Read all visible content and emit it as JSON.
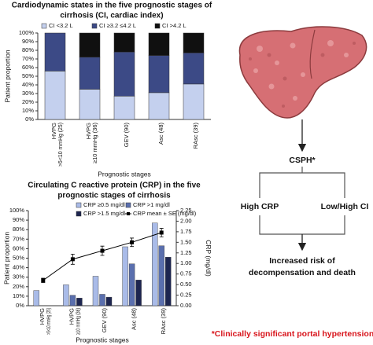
{
  "chart_data": [
    {
      "type": "stacked_bar",
      "title": [
        "Cardiodynamic states in the five prognostic stages of",
        "cirrhosis (CI, cardiac index)"
      ],
      "ylabel": "Patient proportion",
      "xlabel": "Prognostic stages",
      "categories": [
        [
          "HVPG",
          ">5<10 mmHg (25)"
        ],
        [
          "HVPG",
          "≥10 mmHg (36)"
        ],
        [
          "GEV (90)"
        ],
        [
          "Asc (48)"
        ],
        [
          "RAsc (39)"
        ]
      ],
      "series": [
        {
          "name": "CI <3.2 L",
          "color": "#c4d0ee",
          "values": [
            56,
            35,
            27,
            31,
            41
          ]
        },
        {
          "name": "CI ≥3.2 ≤4.2 L",
          "color": "#3c4a86",
          "values": [
            44,
            37,
            51,
            43,
            36
          ]
        },
        {
          "name": "CI >4.2 L",
          "color": "#101010",
          "values": [
            0,
            28,
            22,
            26,
            23
          ]
        }
      ],
      "ylim": [
        0,
        100
      ],
      "yticks": [
        {
          "value": 0,
          "label": "0%"
        },
        {
          "value": 10,
          "label": "10%"
        },
        {
          "value": 20,
          "label": "20%"
        },
        {
          "value": 30,
          "label": "30%"
        },
        {
          "value": 40,
          "label": "40%"
        },
        {
          "value": 50,
          "label": "50%"
        },
        {
          "value": 60,
          "label": "60%"
        },
        {
          "value": 70,
          "label": "70%"
        },
        {
          "value": 80,
          "label": "80%"
        },
        {
          "value": 90,
          "label": "90%"
        },
        {
          "value": 100,
          "label": "100%"
        }
      ]
    },
    {
      "type": "bar_line",
      "title": [
        "Circulating C reactive protein (CRP) in the five",
        "prognostic stages of cirrhosis"
      ],
      "ylabel": "Patient proportion",
      "y2label": "CRP (mg/dl)",
      "xlabel": "Prognostic stages",
      "categories": [
        [
          "HVPG",
          ">5<10 mmHg (25)"
        ],
        [
          "HVPG",
          "≥10 mmHg (36)"
        ],
        [
          "GEV (90)"
        ],
        [
          "Asc (48)"
        ],
        [
          "RAsc (39)"
        ]
      ],
      "series": [
        {
          "name": "CRP ≥0.5 mg/dl",
          "color": "#a9bbe8",
          "values": [
            16,
            22,
            31,
            62,
            87
          ]
        },
        {
          "name": "CRP >1 mg/dl",
          "color": "#5a6fae",
          "values": [
            0,
            11,
            12,
            44,
            63
          ]
        },
        {
          "name": "CRP >1.5 mg/dl",
          "color": "#1d2550",
          "values": [
            0,
            8,
            9,
            27,
            51
          ]
        },
        {
          "name": "CRP mean ± SE (mg/dl)",
          "color": "#000000",
          "axis": "y2",
          "values": [
            0.6,
            1.1,
            1.3,
            1.5,
            1.73
          ],
          "errors": [
            0.05,
            0.12,
            0.11,
            0.1,
            0.1
          ]
        }
      ],
      "ylim": [
        0,
        100
      ],
      "yticks": [
        {
          "value": 0,
          "label": "0%"
        },
        {
          "value": 10,
          "label": "10%"
        },
        {
          "value": 20,
          "label": "20%"
        },
        {
          "value": 30,
          "label": "30%"
        },
        {
          "value": 40,
          "label": "40%"
        },
        {
          "value": 50,
          "label": "50%"
        },
        {
          "value": 60,
          "label": "60%"
        },
        {
          "value": 70,
          "label": "70%"
        },
        {
          "value": 80,
          "label": "80%"
        },
        {
          "value": 90,
          "label": "90%"
        },
        {
          "value": 100,
          "label": "100%"
        }
      ],
      "y2lim": [
        0,
        2.25
      ],
      "y2ticks": [
        {
          "value": 0,
          "label": "0.00"
        },
        {
          "value": 0.25,
          "label": "0.25"
        },
        {
          "value": 0.5,
          "label": "0.50"
        },
        {
          "value": 0.75,
          "label": "0.75"
        },
        {
          "value": 1,
          "label": "1.00"
        },
        {
          "value": 1.25,
          "label": "1.25"
        },
        {
          "value": 1.5,
          "label": "1.50"
        },
        {
          "value": 1.75,
          "label": "1.75"
        },
        {
          "value": 2,
          "label": "2.00"
        },
        {
          "value": 2.25,
          "label": "2.25"
        }
      ]
    }
  ],
  "diagram": {
    "csph": "CSPH*",
    "left": "High CRP",
    "right": "Low/High CI",
    "outcome": [
      "Increased risk of",
      "decompensation and death"
    ],
    "footnote": "*Clinically significant portal hypertension"
  }
}
